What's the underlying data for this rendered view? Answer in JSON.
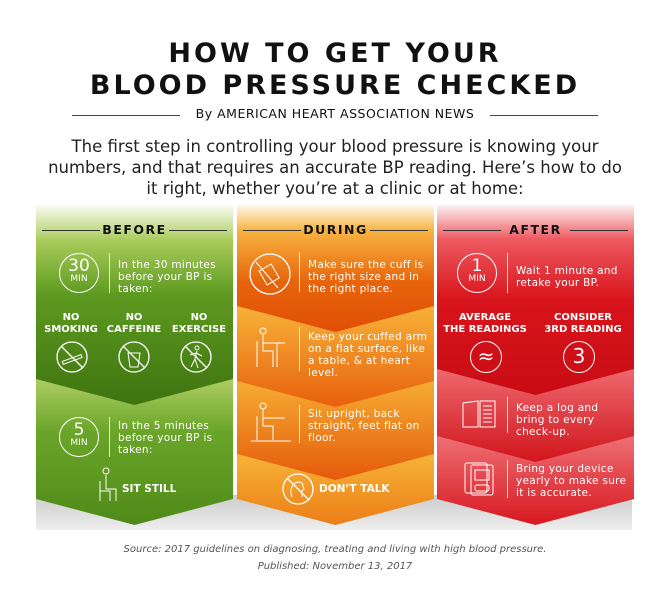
{
  "title": {
    "line1": "HOW TO GET YOUR",
    "line2": "BLOOD PRESSURE CHECKED"
  },
  "byline": "By AMERICAN HEART ASSOCIATION NEWS",
  "intro": "The first step in controlling your blood pressure is knowing your numbers, and that requires an accurate BP reading. Here’s how to do it right, whether you’re at a clinic or at home:",
  "colors": {
    "before": "#5e9a1e",
    "during": "#e8650c",
    "after": "#d8141c"
  },
  "before": {
    "header": "BEFORE",
    "step1": {
      "num": "30",
      "unit": "MIN",
      "text": "In the 30 minutes before your BP is taken:"
    },
    "items": [
      {
        "l1": "NO",
        "l2": "SMOKING",
        "icon": "no-smoking-icon"
      },
      {
        "l1": "NO",
        "l2": "CAFFEINE",
        "icon": "no-caffeine-icon"
      },
      {
        "l1": "NO",
        "l2": "EXERCISE",
        "icon": "no-exercise-icon"
      }
    ],
    "step2": {
      "num": "5",
      "unit": "MIN",
      "text": "In the 5 minutes before your BP is taken:"
    },
    "sit": "SIT STILL"
  },
  "during": {
    "header": "DURING",
    "steps": [
      "Make sure the cuff is the right size and in the right place.",
      "Keep your cuffed arm on a flat surface, like a table, & at heart level.",
      "Sit upright, back straight, feet flat on floor."
    ],
    "talk": "DON’T TALK"
  },
  "after": {
    "header": "AFTER",
    "step1": {
      "num": "1",
      "unit": "MIN",
      "text": "Wait 1 minute and retake your BP."
    },
    "items": [
      {
        "l1": "AVERAGE",
        "l2": "THE READINGS",
        "glyph": "≈"
      },
      {
        "l1": "CONSIDER",
        "l2": "3RD READING",
        "glyph": "3"
      }
    ],
    "steps": [
      "Keep a log and bring to every check-up.",
      "Bring your device yearly to make sure it is accurate."
    ]
  },
  "footer": {
    "source": "Source: 2017 guidelines on diagnosing, treating and living with high blood pressure.",
    "published": "Published: November 13, 2017"
  }
}
